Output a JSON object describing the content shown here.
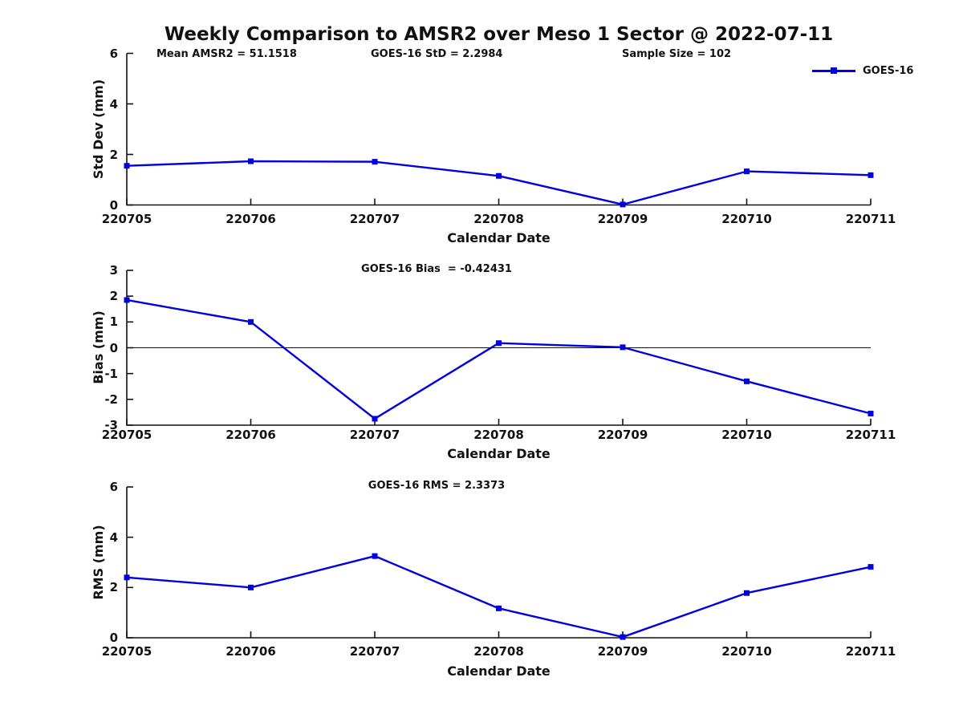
{
  "figure": {
    "title": "Weekly Comparison to AMSR2 over Meso 1 Sector @ 2022-07-11",
    "legend": {
      "label": "GOES-16"
    },
    "colors": {
      "line": "#0000e0",
      "axis": "#111111",
      "text": "#111111"
    }
  },
  "chart_data": [
    {
      "type": "line",
      "title": "",
      "annotations": [
        "Mean AMSR2 = 51.1518",
        "GOES-16 StD = 2.2984",
        "Sample Size = 102"
      ],
      "categories": [
        "220705",
        "220706",
        "220707",
        "220708",
        "220709",
        "220710",
        "220711"
      ],
      "series": [
        {
          "name": "GOES-16",
          "values": [
            1.55,
            1.73,
            1.71,
            1.15,
            0.02,
            1.33,
            1.18
          ]
        }
      ],
      "xlabel": "Calendar Date",
      "ylabel": "Std Dev (mm)",
      "ylim": [
        0,
        6
      ],
      "yticks": [
        0,
        2,
        4,
        6
      ],
      "grid": false,
      "legend_position": "top-right",
      "zero_line": false
    },
    {
      "type": "line",
      "title": "GOES-16 Bias  = -0.42431",
      "categories": [
        "220705",
        "220706",
        "220707",
        "220708",
        "220709",
        "220710",
        "220711"
      ],
      "series": [
        {
          "name": "GOES-16",
          "values": [
            1.85,
            1.0,
            -2.75,
            0.18,
            0.02,
            -1.3,
            -2.55
          ]
        }
      ],
      "xlabel": "Calendar Date",
      "ylabel": "Bias (mm)",
      "ylim": [
        -3,
        3
      ],
      "yticks": [
        3,
        2,
        1,
        0,
        -1,
        -2,
        -3
      ],
      "grid": false,
      "zero_line": true
    },
    {
      "type": "line",
      "title": "GOES-16 RMS = 2.3373",
      "categories": [
        "220705",
        "220706",
        "220707",
        "220708",
        "220709",
        "220710",
        "220711"
      ],
      "series": [
        {
          "name": "GOES-16",
          "values": [
            2.4,
            2.0,
            3.25,
            1.17,
            0.03,
            1.78,
            2.82
          ]
        }
      ],
      "xlabel": "Calendar Date",
      "ylabel": "RMS (mm)",
      "ylim": [
        0,
        6
      ],
      "yticks": [
        0,
        2,
        4,
        6
      ],
      "grid": false,
      "zero_line": false
    }
  ]
}
